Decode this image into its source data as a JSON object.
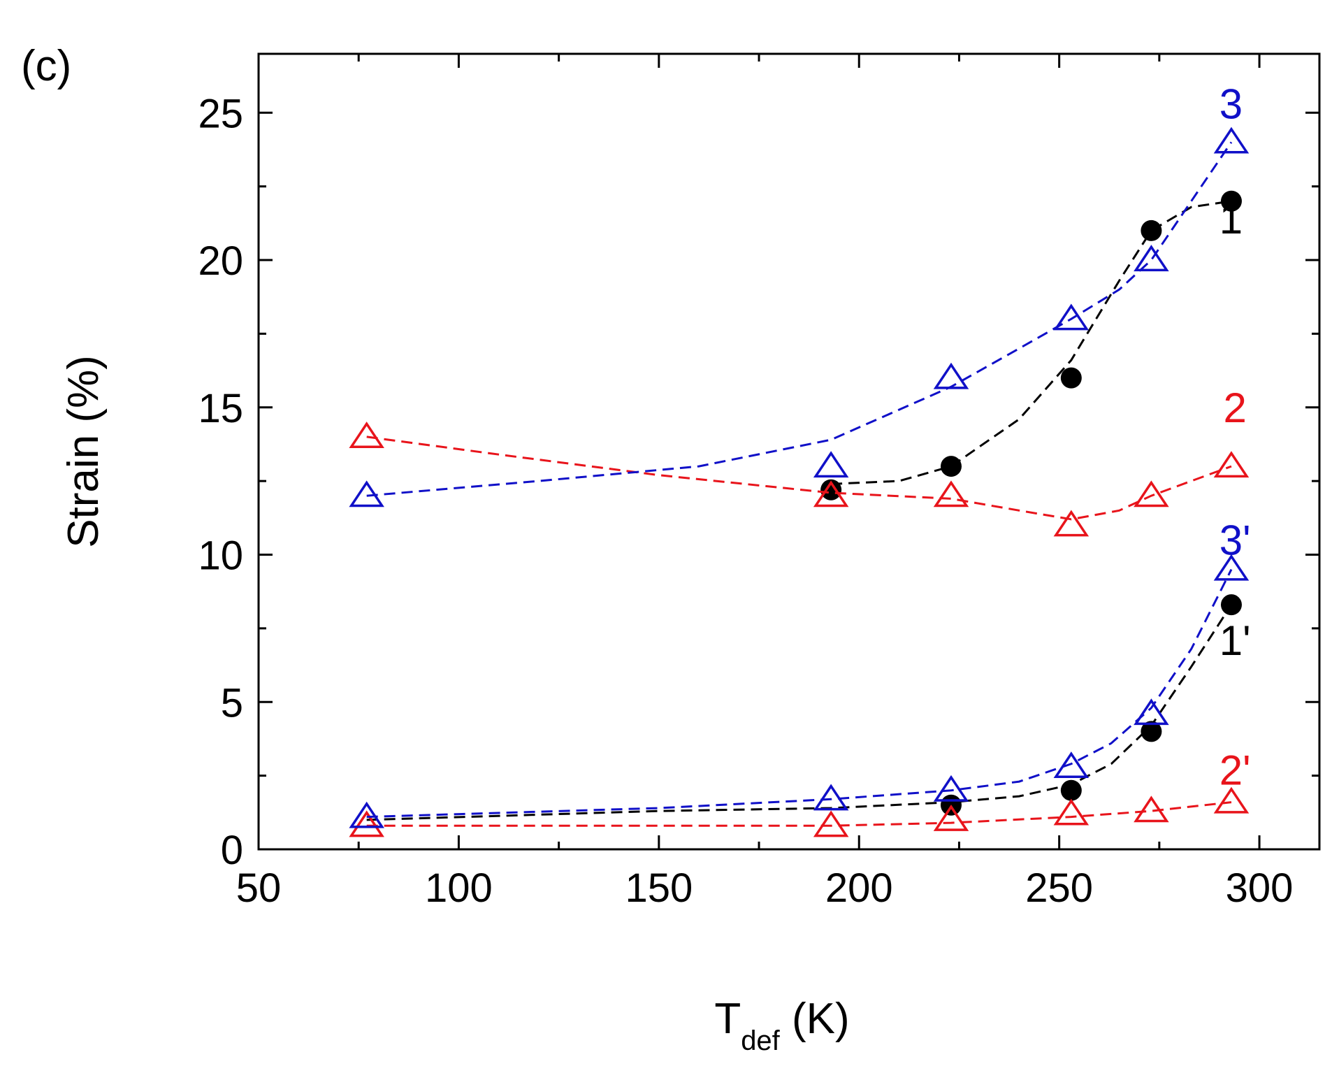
{
  "chart_data": {
    "type": "scatter",
    "panel_label": "(c)",
    "xlabel_main": "T",
    "xlabel_sub": "def",
    "xlabel_unit": " (K)",
    "ylabel": "Strain (%)",
    "xlim": [
      50,
      315
    ],
    "ylim": [
      0,
      27
    ],
    "xticks": [
      50,
      100,
      150,
      200,
      250,
      300
    ],
    "yticks": [
      0,
      5,
      10,
      15,
      20,
      25
    ],
    "x_minor_step": 25,
    "y_minor_step": 2.5,
    "grid": false,
    "colors": {
      "black": "#000000",
      "red": "#e8141b",
      "blue": "#1010c8"
    },
    "series": [
      {
        "name": "1",
        "label": "1",
        "marker": "circle",
        "color": "#000000",
        "x": [
          193,
          223,
          253,
          273,
          293
        ],
        "y": [
          12.2,
          13.0,
          16.0,
          21.0,
          22.0
        ],
        "curve": {
          "x": [
            193,
            210,
            223,
            240,
            253,
            265,
            273,
            283,
            293
          ],
          "y": [
            12.4,
            12.5,
            13.0,
            14.6,
            16.6,
            19.3,
            21.0,
            21.8,
            22.0
          ]
        },
        "label_xy": [
          290,
          20.9
        ]
      },
      {
        "name": "2",
        "label": "2",
        "marker": "triangle",
        "color": "#e8141b",
        "x": [
          77,
          193,
          223,
          253,
          273,
          293
        ],
        "y": [
          14.0,
          12.0,
          12.0,
          11.0,
          12.0,
          13.0
        ],
        "curve": {
          "x": [
            77,
            110,
            150,
            193,
            223,
            240,
            253,
            265,
            273,
            283,
            293
          ],
          "y": [
            14.0,
            13.4,
            12.7,
            12.1,
            11.9,
            11.5,
            11.2,
            11.5,
            12.0,
            12.5,
            13.0
          ]
        },
        "label_xy": [
          291,
          14.5
        ]
      },
      {
        "name": "3",
        "label": "3",
        "marker": "triangle",
        "color": "#1010c8",
        "x": [
          77,
          193,
          223,
          253,
          273,
          293
        ],
        "y": [
          12.0,
          13.0,
          16.0,
          18.0,
          20.0,
          24.0
        ],
        "curve": {
          "x": [
            77,
            120,
            160,
            193,
            223,
            240,
            253,
            265,
            273,
            283,
            293
          ],
          "y": [
            12.0,
            12.5,
            13.0,
            13.9,
            15.7,
            17.0,
            18.0,
            19.0,
            20.0,
            22.0,
            24.0
          ]
        },
        "label_xy": [
          290,
          24.8
        ]
      },
      {
        "name": "1'",
        "label": "1'",
        "marker": "circle",
        "color": "#000000",
        "x": [
          223,
          253,
          273,
          293
        ],
        "y": [
          1.5,
          2.0,
          4.0,
          8.3
        ],
        "curve": {
          "x": [
            77,
            150,
            193,
            223,
            240,
            253,
            263,
            273,
            283,
            293
          ],
          "y": [
            1.0,
            1.3,
            1.4,
            1.6,
            1.8,
            2.2,
            2.9,
            4.2,
            6.2,
            8.3
          ]
        },
        "label_xy": [
          290,
          6.6
        ]
      },
      {
        "name": "2'",
        "label": "2'",
        "marker": "triangle",
        "color": "#e8141b",
        "x": [
          77,
          193,
          223,
          253,
          273,
          293
        ],
        "y": [
          0.8,
          0.8,
          1.0,
          1.2,
          1.3,
          1.6
        ],
        "curve": {
          "x": [
            77,
            193,
            223,
            253,
            273,
            293
          ],
          "y": [
            0.8,
            0.8,
            0.9,
            1.1,
            1.3,
            1.6
          ]
        },
        "label_xy": [
          290,
          2.2
        ]
      },
      {
        "name": "3'",
        "label": "3'",
        "marker": "triangle",
        "color": "#1010c8",
        "x": [
          77,
          193,
          223,
          253,
          273,
          293
        ],
        "y": [
          1.1,
          1.7,
          2.0,
          2.8,
          4.6,
          9.5
        ],
        "curve": {
          "x": [
            77,
            150,
            193,
            223,
            240,
            253,
            263,
            273,
            283,
            293
          ],
          "y": [
            1.1,
            1.4,
            1.7,
            2.0,
            2.3,
            2.9,
            3.6,
            4.8,
            6.8,
            9.5
          ]
        },
        "label_xy": [
          290,
          10.0
        ]
      }
    ]
  }
}
